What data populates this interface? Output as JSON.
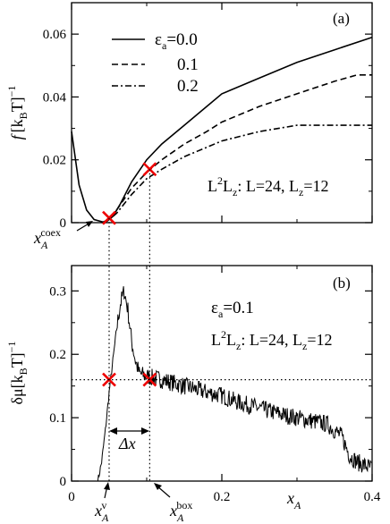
{
  "chart_data": [
    {
      "panel": "(a)",
      "type": "line",
      "ylabel_main": "f",
      "ylabel_unit": "[k",
      "ylabel_sub": "B",
      "ylabel_tail": "T]",
      "ylabel_sup": "−1",
      "xlim": [
        0,
        0.4
      ],
      "ylim": [
        0,
        0.07
      ],
      "yticks": [
        0,
        0.02,
        0.04,
        0.06
      ],
      "ytick_labels": [
        "0",
        "0.02",
        "0.04",
        "0.06"
      ],
      "legend_symbol": "ε",
      "legend_sub": "a",
      "legend_prefix": "=",
      "annotation": {
        "pre": "L",
        "sup": "2",
        "mid": "L",
        "sub": "z",
        "post": ": L=24, L",
        "sub2": "z",
        "tail": "=12"
      },
      "series": [
        {
          "name": "0.0",
          "dash": "solid",
          "x": [
            0,
            0.01,
            0.02,
            0.03,
            0.045,
            0.055,
            0.065,
            0.08,
            0.1,
            0.12,
            0.15,
            0.18,
            0.2,
            0.25,
            0.3,
            0.35,
            0.4
          ],
          "y": [
            0.029,
            0.012,
            0.004,
            0.001,
            0.0,
            0.002,
            0.006,
            0.013,
            0.02,
            0.025,
            0.031,
            0.037,
            0.041,
            0.046,
            0.051,
            0.055,
            0.059
          ]
        },
        {
          "name": "0.1",
          "dash": "dashed",
          "x": [
            0.04,
            0.05,
            0.06,
            0.08,
            0.1,
            0.12,
            0.15,
            0.18,
            0.2,
            0.25,
            0.3,
            0.35,
            0.38,
            0.4
          ],
          "y": [
            0.0,
            0.001,
            0.004,
            0.011,
            0.016,
            0.02,
            0.025,
            0.029,
            0.032,
            0.037,
            0.041,
            0.045,
            0.047,
            0.047
          ]
        },
        {
          "name": "0.2",
          "dash": "dashdot",
          "x": [
            0.04,
            0.05,
            0.06,
            0.08,
            0.1,
            0.12,
            0.15,
            0.18,
            0.2,
            0.25,
            0.3,
            0.35,
            0.4
          ],
          "y": [
            0.0,
            0.001,
            0.003,
            0.009,
            0.014,
            0.017,
            0.021,
            0.024,
            0.026,
            0.029,
            0.031,
            0.031,
            0.031
          ]
        }
      ],
      "markers": [
        {
          "x": 0.05,
          "y": 0.0015
        },
        {
          "x": 0.104,
          "y": 0.017
        }
      ],
      "xcoex_label": {
        "main": "x",
        "sub": "A",
        "sup": "coex"
      },
      "vlines_x": [
        0.05,
        0.104
      ]
    },
    {
      "panel": "(b)",
      "type": "line",
      "ylabel_main": "δμ",
      "ylabel_unit": "[k",
      "ylabel_sub": "B",
      "ylabel_tail": "T]",
      "ylabel_sup": "−1",
      "xlabel_main": "x",
      "xlabel_sub": "A",
      "xlim": [
        0,
        0.4
      ],
      "ylim": [
        0,
        0.34
      ],
      "xticks": [
        0,
        0.2,
        0.4
      ],
      "xtick_labels": [
        "0",
        "0.2",
        "0.4"
      ],
      "yticks": [
        0,
        0.1,
        0.2,
        0.3
      ],
      "ytick_labels": [
        "0",
        "0.1",
        "0.2",
        "0.3"
      ],
      "eps_label": {
        "main": "ε",
        "sub": "a",
        "tail": "=0.1"
      },
      "annotation": {
        "pre": "L",
        "sup": "2",
        "mid": "L",
        "sub": "z",
        "post": ": L=24, L",
        "sub2": "z",
        "tail": "=12"
      },
      "series": [
        {
          "name": "δμ",
          "dash": "solid",
          "x": [
            0.035,
            0.04,
            0.045,
            0.05,
            0.055,
            0.06,
            0.065,
            0.07,
            0.075,
            0.08,
            0.085,
            0.09,
            0.1,
            0.12,
            0.15,
            0.18,
            0.2,
            0.22,
            0.25,
            0.28,
            0.3,
            0.32,
            0.34,
            0.36,
            0.37,
            0.38,
            0.39,
            0.4
          ],
          "y": [
            0.0,
            0.03,
            0.08,
            0.14,
            0.19,
            0.24,
            0.28,
            0.3,
            0.27,
            0.22,
            0.19,
            0.17,
            0.165,
            0.16,
            0.15,
            0.14,
            0.135,
            0.125,
            0.115,
            0.105,
            0.1,
            0.095,
            0.09,
            0.07,
            0.04,
            0.03,
            0.025,
            0.02
          ]
        }
      ],
      "markers": [
        {
          "x": 0.05,
          "y": 0.16
        },
        {
          "x": 0.104,
          "y": 0.16
        }
      ],
      "hline_y": 0.16,
      "vlines_x": [
        0.05,
        0.104
      ],
      "dx_label": "Δx",
      "xv_label": {
        "main": "x",
        "sub": "A",
        "sup": "v"
      },
      "xbox_label": {
        "main": "x",
        "sub": "A",
        "sup": "box"
      }
    }
  ]
}
